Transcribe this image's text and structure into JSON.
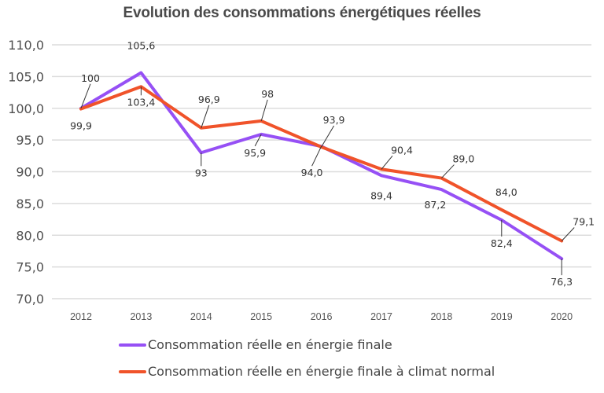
{
  "chart_data": {
    "type": "line",
    "title": "Evolution des consommations énergétiques réelles",
    "xlabel": "",
    "ylabel": "",
    "categories": [
      "2012",
      "2013",
      "2014",
      "2015",
      "2016",
      "2017",
      "2018",
      "2019",
      "2020"
    ],
    "ylim": [
      70,
      110
    ],
    "yticks": [
      70,
      75,
      80,
      85,
      90,
      95,
      100,
      105,
      110
    ],
    "ytick_labels": [
      "70,0",
      "75,0",
      "80,0",
      "85,0",
      "90,0",
      "95,0",
      "100,0",
      "105,0",
      "110,0"
    ],
    "grid": true,
    "legend_position": "bottom-left",
    "series": [
      {
        "name": "Consommation réelle en énergie finale",
        "color": "#9650f5",
        "values": [
          100,
          105.6,
          93,
          95.9,
          94.0,
          89.4,
          87.2,
          82.4,
          76.3
        ],
        "labels": [
          "100",
          "105,6",
          "93",
          "95,9",
          "94,0",
          "89,4",
          "87,2",
          "82,4",
          "76,3"
        ]
      },
      {
        "name": "Consommation réelle en énergie finale à climat normal",
        "color": "#f0532a",
        "values": [
          99.9,
          103.4,
          96.9,
          98,
          93.9,
          90.4,
          89.0,
          84.0,
          79.1
        ],
        "labels": [
          "99,9",
          "103,4",
          "96,9",
          "98",
          "93,9",
          "90,4",
          "89,0",
          "84,0",
          "79,1"
        ]
      }
    ]
  }
}
